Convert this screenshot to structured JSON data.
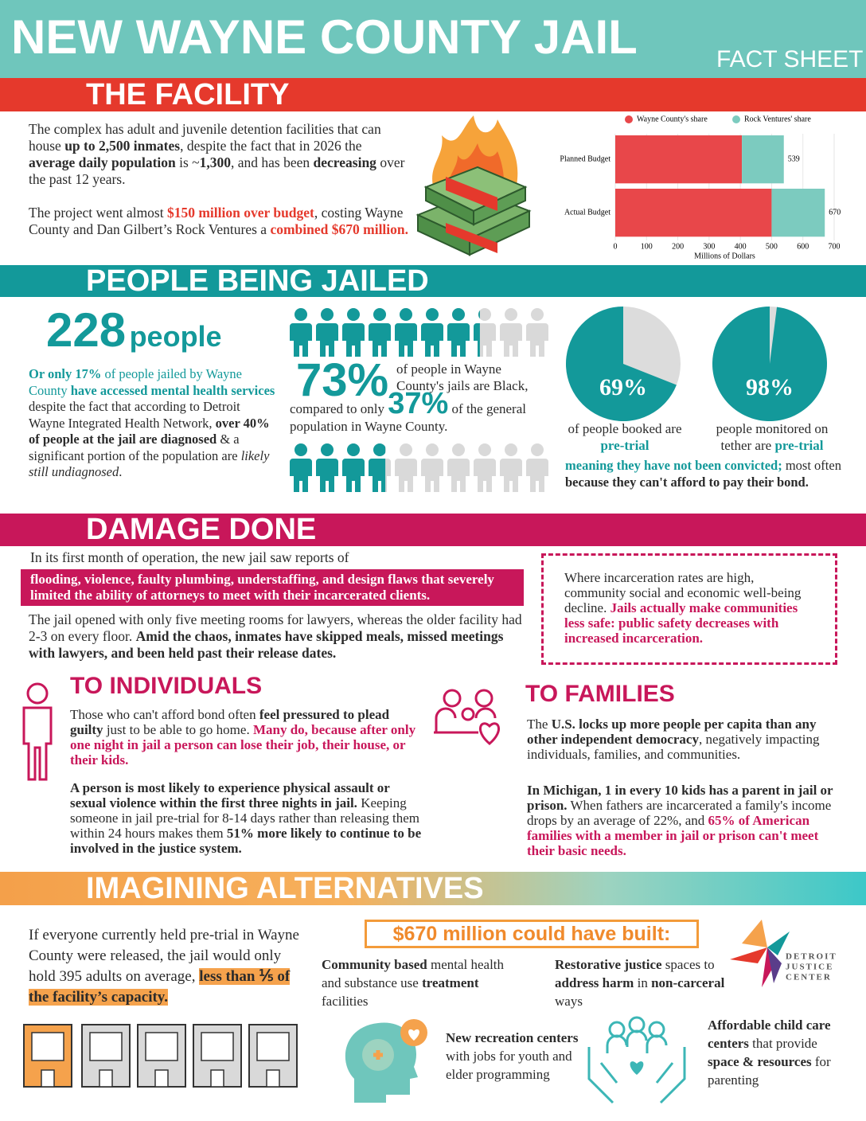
{
  "header": {
    "title": "NEW WAYNE COUNTY JAIL",
    "subtitle": "FACT SHEET"
  },
  "facility": {
    "heading": "THE FACILITY",
    "p1": [
      "The complex has adult and juvenile detention facilities that can house ",
      "up to 2,500 inmates",
      ", despite the fact that in 2026 the ",
      "average daily population",
      " is ~",
      "1,300",
      ", and has been ",
      "decreasing",
      " over the past 12 years."
    ],
    "p2": [
      "The project went almost ",
      "$150 million over budget",
      ", costing Wayne County and Dan Gilbert’s Rock Ventures a ",
      "combined $670 million."
    ],
    "chart": {
      "type": "bar",
      "orientation": "horizontal",
      "stacked": true,
      "categories": [
        "Planned Budget",
        "Actual Budget"
      ],
      "series": [
        {
          "name": "Wayne County's share",
          "color": "#e8474a",
          "values": [
            405,
            500
          ]
        },
        {
          "name": "Rock Ventures' share",
          "color": "#7ccbbf",
          "values": [
            134,
            170
          ]
        }
      ],
      "total_labels": [
        539,
        670
      ],
      "xlim": [
        0,
        700
      ],
      "xticks": [
        0,
        100,
        200,
        300,
        400,
        500,
        600,
        700
      ],
      "xlabel": "Millions of Dollars",
      "grid": true,
      "legend": "top"
    }
  },
  "jailed": {
    "heading": "PEOPLE BEING JAILED",
    "count": "228",
    "count_unit": "people",
    "p1": [
      "Or only 17%",
      " of people jailed by Wayne County ",
      "have accessed mental health services",
      " despite the fact that according to Detroit Wayne Integrated Health Network, ",
      "over 40% of people at the jail are diagnosed",
      " & a significant portion of the population are ",
      "likely still undiagnosed",
      "."
    ],
    "race": {
      "type": "icon-array",
      "values": [
        73,
        37
      ],
      "value_labels": [
        "73%",
        "37%"
      ],
      "colors": [
        "#13999a",
        "#d9d9d9"
      ]
    },
    "black_text": "of people in Wayne County's jails are Black,",
    "compare_text": "compared to only",
    "general_text": "of the general population in Wayne County.",
    "pies": [
      {
        "type": "pie",
        "values": [
          69
        ],
        "value_labels": [
          "69%"
        ],
        "colors": [
          "#13999a",
          "#dcdcdc"
        ],
        "caption": [
          "of people booked are ",
          "pre-trial"
        ]
      },
      {
        "type": "pie",
        "values": [
          98
        ],
        "value_labels": [
          "98%"
        ],
        "colors": [
          "#13999a",
          "#dcdcdc"
        ],
        "caption": [
          "people monitored on tether are ",
          "pre-trial"
        ]
      }
    ],
    "note": [
      "meaning they have not been convicted;",
      " most often ",
      "because they can't afford to pay their bond."
    ]
  },
  "damage": {
    "heading": "DAMAGE DONE",
    "intro": "In its first month of operation, the new jail saw reports of",
    "banner": "flooding, violence, faulty plumbing, understaffing, and design flaws that severely limited the ability of attorneys to meet with their incarcerated clients.",
    "p1": [
      "The jail opened with only five meeting rooms for lawyers, whereas the older facility had 2-3 on every floor. ",
      "Amid the chaos, inmates have skipped meals, missed meetings with lawyers, and been held past their release dates."
    ],
    "box": [
      "Where incarceration rates are high, community social and economic well-being decline. ",
      "Jails actually make communities less safe: public safety decreases with increased incarceration."
    ],
    "individuals": {
      "heading": "TO INDIVIDUALS",
      "p1": [
        "Those who can't afford bond often ",
        "feel pressured to plead guilty",
        " just to be able to go home. ",
        "Many do, because after only one night in jail a person can lose their job, their house, or their kids."
      ],
      "p2": [
        "A person is most likely to experience physical assault or sexual violence within the first three nights in jail.",
        " Keeping someone in jail pre-trial for 8-14 days rather than releasing them within 24 hours makes them ",
        "51% more likely to continue to be involved in the justice system."
      ]
    },
    "families": {
      "heading": "TO FAMILIES",
      "p1": [
        "The ",
        "U.S. locks up more people per capita than any other independent democracy",
        ", negatively impacting individuals, families, and communities."
      ],
      "p2": [
        "In Michigan, 1 in every 10 kids has a parent in jail or prison.",
        " When fathers are incarcerated a family's income drops by an average of 22%, and ",
        "65% of American  families with a member in jail or prison can't meet their basic needs."
      ]
    }
  },
  "alternatives": {
    "heading": "IMAGINING ALTERNATIVES",
    "p1": [
      "If everyone currently held pre-trial in Wayne County were released, the jail would only hold 395 adults on average, ",
      "less than ⅕ of the facility’s capacity."
    ],
    "built_heading": "$670 million could have built:",
    "items": [
      [
        "Community based",
        " mental health and substance use ",
        "treatment",
        " facilities"
      ],
      [
        "Restorative justice",
        " spaces to ",
        "address harm",
        " in ",
        "non-carceral",
        " ways"
      ],
      [
        "New recreation centers",
        " with jobs for youth and elder programming"
      ],
      [
        "Affordable child care centers",
        " that provide ",
        "space & resources",
        " for parenting"
      ]
    ],
    "logo": [
      "DETROIT",
      "JUSTICE",
      "CENTER"
    ]
  }
}
